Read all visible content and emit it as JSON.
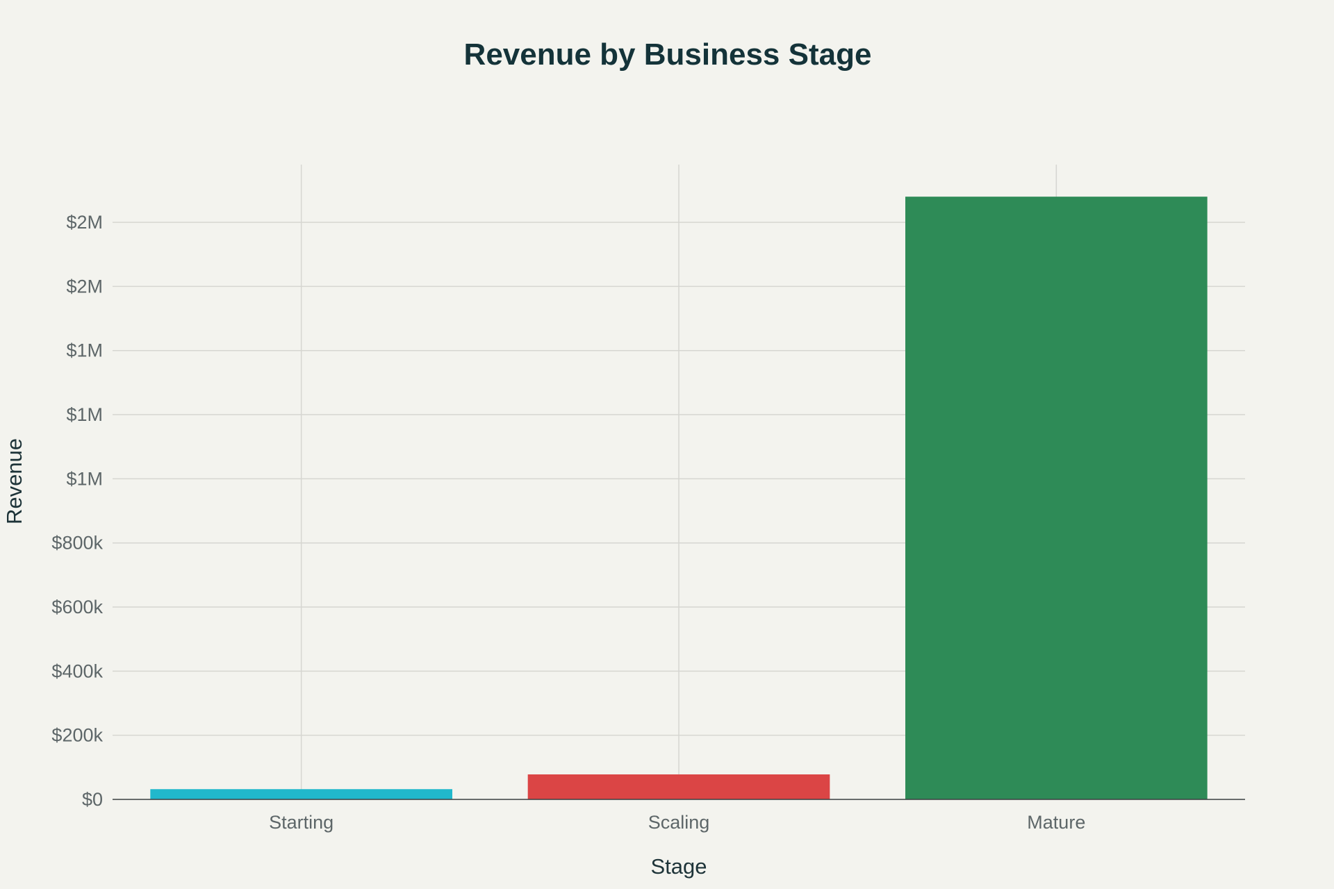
{
  "chart_data": {
    "type": "bar",
    "title": "Revenue by Business Stage",
    "xlabel": "Stage",
    "ylabel": "Revenue",
    "categories": [
      "Starting",
      "Scaling",
      "Mature"
    ],
    "values": [
      32000,
      78000,
      1880000
    ],
    "colors": [
      "#21b8cc",
      "#db4545",
      "#2e8b57"
    ],
    "ylim": [
      0,
      1980000
    ],
    "yticks": [
      0,
      200000,
      400000,
      600000,
      800000,
      1000000,
      1200000,
      1400000,
      1600000,
      1800000
    ],
    "ytick_labels": [
      "$0",
      "$200k",
      "$400k",
      "$600k",
      "$800k",
      "$1M",
      "$1M",
      "$1M",
      "$2M",
      "$2M"
    ],
    "grid": true,
    "legend": "none"
  }
}
